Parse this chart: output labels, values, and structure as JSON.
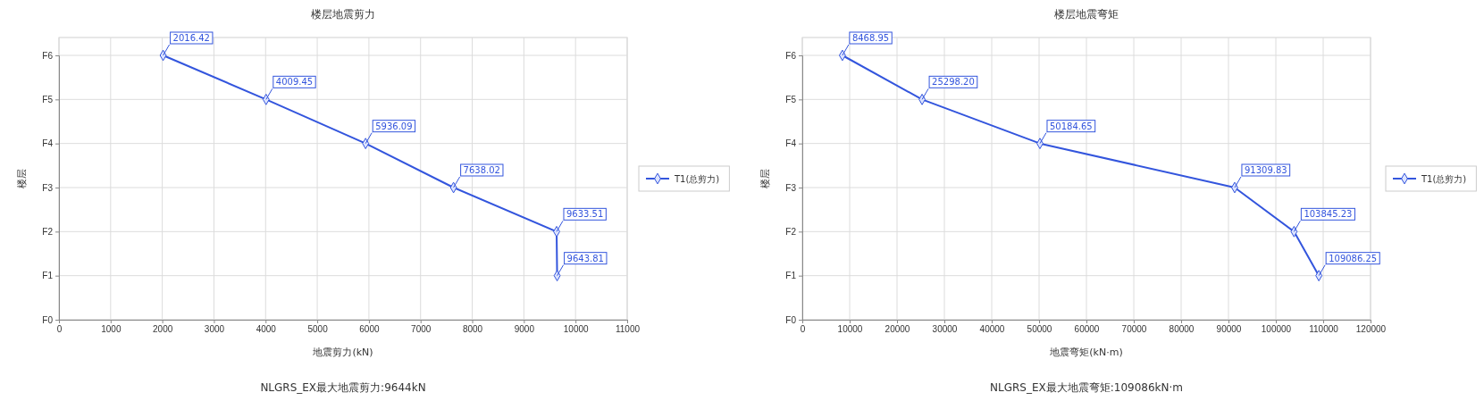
{
  "chart_data": [
    {
      "type": "line",
      "title": "楼层地震剪力",
      "xlabel": "地震剪力(kN)",
      "ylabel": "楼层",
      "orientation": "horizontal",
      "categories": [
        "F6",
        "F5",
        "F4",
        "F3",
        "F2",
        "F1",
        "F0"
      ],
      "series": [
        {
          "name": "T1(总剪力)",
          "color": "#3355dd",
          "values": [
            2016.42,
            4009.45,
            5936.09,
            7638.02,
            9633.51,
            9643.81,
            null
          ],
          "value_labels": [
            "2016.42",
            "4009.45",
            "5936.09",
            "7638.02",
            "9633.51",
            "9643.81",
            null
          ]
        }
      ],
      "xlim": [
        0,
        11000
      ],
      "xticks": [
        0,
        1000,
        2000,
        3000,
        4000,
        5000,
        6000,
        7000,
        8000,
        9000,
        10000,
        11000
      ],
      "grid": true,
      "legend": "right",
      "marker": "diamond",
      "line_style": "solid",
      "annotations": [
        "NLGRS_EX最大地震剪力:9644kN"
      ]
    },
    {
      "type": "line",
      "title": "楼层地震弯矩",
      "xlabel": "地震弯矩(kN·m)",
      "ylabel": "楼层",
      "orientation": "horizontal",
      "categories": [
        "F6",
        "F5",
        "F4",
        "F3",
        "F2",
        "F1",
        "F0"
      ],
      "series": [
        {
          "name": "T1(总剪力)",
          "color": "#3355dd",
          "values": [
            8468.95,
            25298.2,
            50184.65,
            91309.83,
            103845.23,
            109086.25,
            null
          ],
          "value_labels": [
            "8468.95",
            "25298.20",
            "50184.65",
            "91309.83",
            "103845.23",
            "109086.25",
            null
          ]
        }
      ],
      "xlim": [
        0,
        120000
      ],
      "xticks": [
        0,
        10000,
        20000,
        30000,
        40000,
        50000,
        60000,
        70000,
        80000,
        90000,
        100000,
        110000,
        120000
      ],
      "grid": true,
      "legend": "right",
      "marker": "diamond",
      "line_style": "solid",
      "annotations": [
        "NLGRS_EX最大地震弯矩:109086kN·m"
      ]
    }
  ]
}
